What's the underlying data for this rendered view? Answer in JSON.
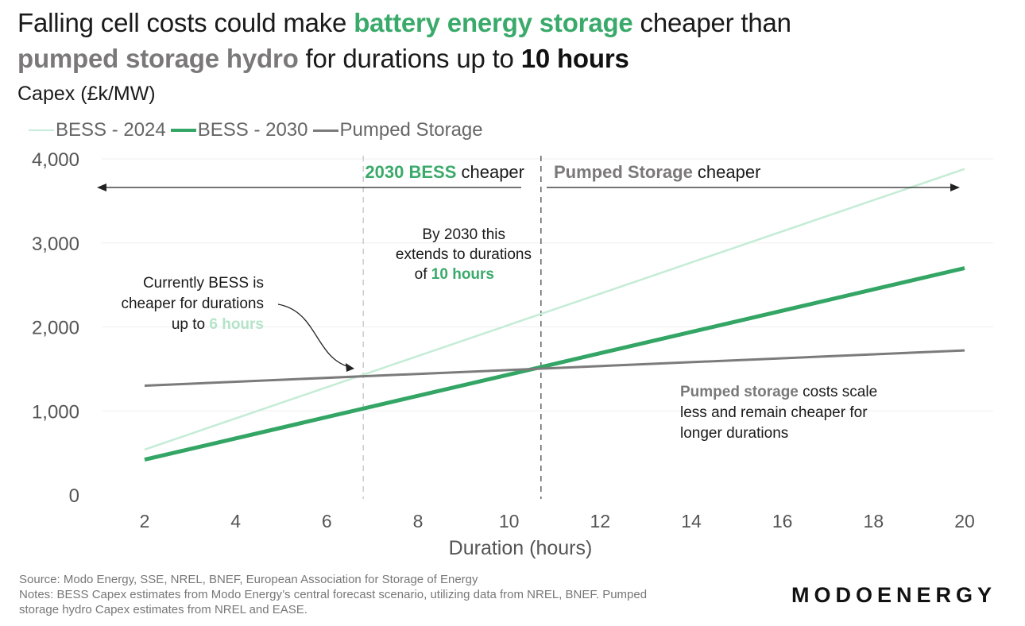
{
  "title": {
    "part1": "Falling cell costs could make ",
    "part2": "battery energy storage",
    "part3": " cheaper than ",
    "part4": "pumped storage hydro",
    "part5": " for durations up to ",
    "part6": "10 hours"
  },
  "colors": {
    "bess_2024": "#c4ecd6",
    "bess_2030": "#33a564",
    "pumped_storage": "#7b7b7b",
    "annotation_green": "#3aaa6a",
    "annotation_grey": "#7a7878"
  },
  "chart_data": {
    "type": "line",
    "title": "Falling cell costs could make battery energy storage cheaper than pumped storage hydro for durations up to 10 hours",
    "ylabel": "Capex (£k/MW)",
    "xlabel": "Duration (hours)",
    "xlim": [
      2,
      20
    ],
    "ylim": [
      0,
      4000
    ],
    "xticks": [
      2,
      4,
      6,
      8,
      10,
      12,
      14,
      16,
      18,
      20
    ],
    "yticks": [
      0,
      1000,
      2000,
      3000,
      4000
    ],
    "xtick_labels": [
      "2",
      "4",
      "6",
      "8",
      "10",
      "12",
      "14",
      "16",
      "18",
      "20"
    ],
    "ytick_labels": [
      "0",
      "1,000",
      "2,000",
      "3,000",
      "4,000"
    ],
    "grid": true,
    "legend_position": "top-left",
    "series": [
      {
        "name": "BESS - 2024",
        "x": [
          2,
          20
        ],
        "y": [
          540,
          3880
        ]
      },
      {
        "name": "BESS - 2030",
        "x": [
          2,
          20
        ],
        "y": [
          420,
          2700
        ]
      },
      {
        "name": "Pumped Storage",
        "x": [
          2,
          20
        ],
        "y": [
          1300,
          1720
        ]
      }
    ],
    "vertical_lines": [
      6.8,
      10.7
    ],
    "annotations": {
      "left_region": {
        "part1": "2030 BESS",
        "part2": " cheaper"
      },
      "right_region": {
        "part1": "Pumped Storage",
        "part2": " cheaper"
      },
      "mid_note": {
        "line1": "By 2030 this",
        "line2": "extends to durations",
        "line3_prefix": "of ",
        "line3_highlight": "10 hours"
      },
      "left_note": {
        "line1": "Currently BESS is",
        "line2": "cheaper for durations",
        "line3_prefix": "up to ",
        "line3_highlight": "6 hours"
      },
      "right_note": {
        "line1_highlight": "Pumped storage",
        "line1_rest": " costs scale",
        "line2": "less and remain cheaper for",
        "line3": "longer durations"
      }
    }
  },
  "footer": {
    "source": "Source: Modo Energy, SSE, NREL, BNEF, European Association for Storage of Energy",
    "notes1": "Notes: BESS Capex estimates from Modo Energy’s central forecast scenario, utilizing data from NREL, BNEF. Pumped",
    "notes2": "storage hydro Capex estimates from NREL and EASE.",
    "logo": "MODOENERGY"
  }
}
